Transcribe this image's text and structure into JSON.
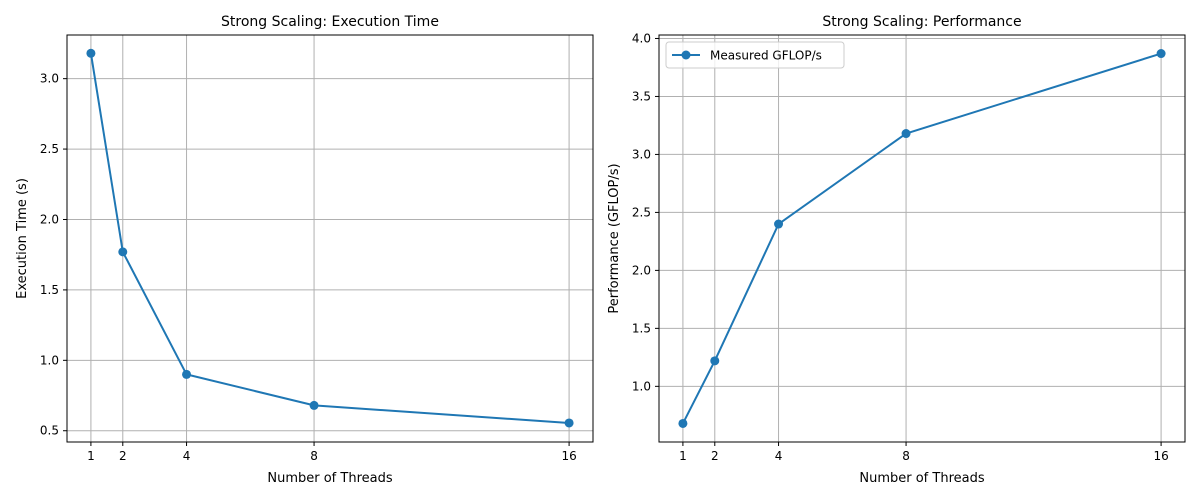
{
  "chart_data": [
    {
      "type": "line",
      "title": "Strong Scaling: Execution Time",
      "xlabel": "Number of Threads",
      "ylabel": "Execution Time (s)",
      "x": [
        1,
        2,
        4,
        8,
        16
      ],
      "xticks": [
        1,
        2,
        4,
        8,
        16
      ],
      "xlim": [
        0.25,
        16.75
      ],
      "yticks": [
        0.5,
        1.0,
        1.5,
        2.0,
        2.5,
        3.0
      ],
      "yticklabels": [
        "0.5",
        "1.0",
        "1.5",
        "2.0",
        "2.5",
        "3.0"
      ],
      "ylim": [
        0.42,
        3.31
      ],
      "grid": true,
      "series": [
        {
          "name": "",
          "color": "#1f77b4",
          "marker": "circle",
          "values": [
            3.18,
            1.77,
            0.9,
            0.68,
            0.555
          ]
        }
      ]
    },
    {
      "type": "line",
      "title": "Strong Scaling: Performance",
      "xlabel": "Number of Threads",
      "ylabel": "Performance (GFLOP/s)",
      "x": [
        1,
        2,
        4,
        8,
        16
      ],
      "xticks": [
        1,
        2,
        4,
        8,
        16
      ],
      "xlim": [
        0.25,
        16.75
      ],
      "yticks": [
        1.0,
        1.5,
        2.0,
        2.5,
        3.0,
        3.5,
        4.0
      ],
      "yticklabels": [
        "1.0",
        "1.5",
        "2.0",
        "2.5",
        "3.0",
        "3.5",
        "4.0"
      ],
      "ylim": [
        0.52,
        4.03
      ],
      "grid": true,
      "legend": "top-left",
      "series": [
        {
          "name": "Measured GFLOP/s",
          "color": "#1f77b4",
          "marker": "circle",
          "values": [
            0.68,
            1.22,
            2.4,
            3.18,
            3.87
          ]
        }
      ]
    }
  ]
}
